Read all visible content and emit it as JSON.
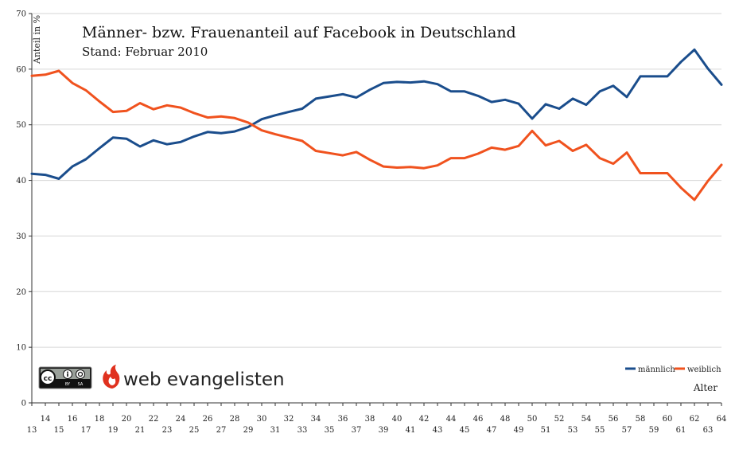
{
  "chart_data": {
    "type": "line",
    "title": "Männer- bzw. Frauenanteil auf Facebook in Deutschland",
    "subtitle": "Stand: Februar 2010",
    "ylabel": "Anteil in %",
    "xlabel": "Alter",
    "ylim": [
      0,
      70
    ],
    "yticks": [
      "0",
      "10",
      "20",
      "30",
      "40",
      "50",
      "60",
      "70"
    ],
    "grid": true,
    "legend_position": "bottom-right",
    "x": [
      13,
      14,
      15,
      16,
      17,
      18,
      19,
      20,
      21,
      22,
      23,
      24,
      25,
      26,
      27,
      28,
      29,
      30,
      31,
      32,
      33,
      34,
      35,
      36,
      37,
      38,
      39,
      40,
      41,
      42,
      43,
      44,
      45,
      46,
      47,
      48,
      49,
      50,
      51,
      52,
      53,
      54,
      55,
      56,
      57,
      58,
      59,
      60,
      61,
      62,
      63,
      64
    ],
    "xtick_labels": [
      "13",
      "14",
      "15",
      "16",
      "17",
      "18",
      "19",
      "20",
      "21",
      "22",
      "23",
      "24",
      "25",
      "26",
      "27",
      "28",
      "29",
      "30",
      "31",
      "32",
      "33",
      "34",
      "35",
      "36",
      "37",
      "38",
      "39",
      "40",
      "41",
      "42",
      "43",
      "44",
      "45",
      "46",
      "47",
      "48",
      "49",
      "50",
      "51",
      "52",
      "53",
      "54",
      "55",
      "56",
      "57",
      "58",
      "59",
      "60",
      "61",
      "62",
      "63",
      "64"
    ],
    "series": [
      {
        "name": "männlich",
        "color": "#1a4d8c",
        "values": [
          41.2,
          41.0,
          40.3,
          42.5,
          43.8,
          45.8,
          47.7,
          47.5,
          46.1,
          47.2,
          46.5,
          46.9,
          47.9,
          48.7,
          48.5,
          48.8,
          49.6,
          51.0,
          51.7,
          52.3,
          52.9,
          54.7,
          55.1,
          55.5,
          54.9,
          56.3,
          57.5,
          57.7,
          57.6,
          57.8,
          57.3,
          56.0,
          56.0,
          55.2,
          54.1,
          54.5,
          53.8,
          51.1,
          53.7,
          52.9,
          54.7,
          53.6,
          56.0,
          57.0,
          55.0,
          58.7,
          58.7,
          58.7,
          61.3,
          63.5,
          60.1,
          57.2
        ]
      },
      {
        "name": "weiblich",
        "color": "#f0521e",
        "values": [
          58.8,
          59.0,
          59.7,
          57.5,
          56.2,
          54.2,
          52.3,
          52.5,
          53.9,
          52.8,
          53.5,
          53.1,
          52.1,
          51.3,
          51.5,
          51.2,
          50.4,
          49.0,
          48.3,
          47.7,
          47.1,
          45.3,
          44.9,
          44.5,
          45.1,
          43.7,
          42.5,
          42.3,
          42.4,
          42.2,
          42.7,
          44.0,
          44.0,
          44.8,
          45.9,
          45.5,
          46.2,
          48.9,
          46.3,
          47.1,
          45.3,
          46.4,
          44.0,
          43.0,
          45.0,
          41.3,
          41.3,
          41.3,
          38.7,
          36.5,
          39.9,
          42.8
        ]
      }
    ]
  },
  "branding": {
    "publisher": "web evangelisten",
    "license": {
      "by_label": "BY",
      "sa_label": "SA"
    }
  }
}
